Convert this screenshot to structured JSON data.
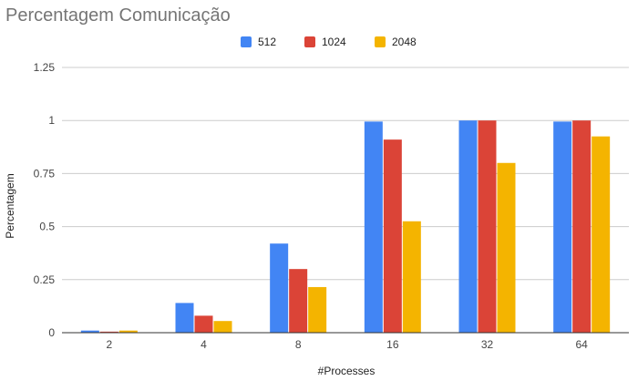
{
  "chart_data": {
    "type": "bar",
    "title": "Percentagem Comunicação",
    "xlabel": "#Processes",
    "ylabel": "Percentagem",
    "categories": [
      "2",
      "4",
      "8",
      "16",
      "32",
      "64"
    ],
    "series": [
      {
        "name": "512",
        "color": "#4285f4",
        "values": [
          0.01,
          0.14,
          0.42,
          0.995,
          1.0,
          0.995
        ]
      },
      {
        "name": "1024",
        "color": "#db4437",
        "values": [
          0.005,
          0.08,
          0.3,
          0.91,
          1.0,
          1.0
        ]
      },
      {
        "name": "2048",
        "color": "#f4b400",
        "values": [
          0.01,
          0.055,
          0.215,
          0.525,
          0.8,
          0.925
        ]
      }
    ],
    "yticks": [
      "0",
      "0.25",
      "0.5",
      "0.75",
      "1",
      "1.25"
    ],
    "ytick_values": [
      0,
      0.25,
      0.5,
      0.75,
      1,
      1.25
    ],
    "ylim": [
      0,
      1.25
    ],
    "grid": true,
    "legend_position": "top-center"
  }
}
